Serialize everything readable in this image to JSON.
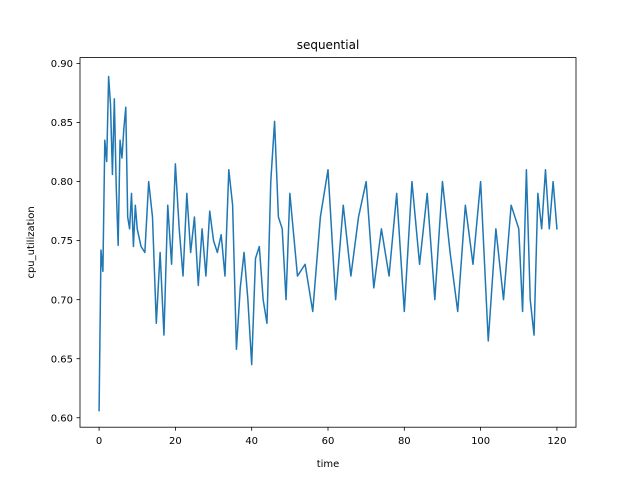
{
  "chart_data": {
    "type": "line",
    "title": "sequential",
    "xlabel": "time",
    "ylabel": "cpu_utilization",
    "xlim": [
      -5,
      125
    ],
    "ylim": [
      0.592,
      0.905
    ],
    "xticks": [
      0,
      20,
      40,
      60,
      80,
      100,
      120
    ],
    "yticks": [
      0.6,
      0.65,
      0.7,
      0.75,
      0.8,
      0.85,
      0.9
    ],
    "ytick_labels": [
      "0.60",
      "0.65",
      "0.70",
      "0.75",
      "0.80",
      "0.85",
      "0.90"
    ],
    "grid": false,
    "legend": "none",
    "color": "#1f77b4",
    "series": [
      {
        "x": [
          0,
          0.5,
          1,
          1.5,
          2,
          2.5,
          3,
          3.5,
          4,
          4.5,
          5,
          5.5,
          6,
          6.5,
          7,
          7.5,
          8,
          8.5,
          9,
          9.5,
          10,
          11,
          12,
          13,
          14,
          15,
          16,
          17,
          18,
          19,
          20,
          21,
          22,
          23,
          24,
          25,
          26,
          27,
          28,
          29,
          30,
          31,
          32,
          33,
          34,
          35,
          36,
          37,
          38,
          39,
          40,
          41,
          42,
          43,
          44,
          45,
          46,
          47,
          48,
          49,
          50,
          52,
          54,
          56,
          58,
          60,
          62,
          64,
          66,
          68,
          70,
          72,
          74,
          76,
          78,
          80,
          82,
          84,
          86,
          88,
          90,
          92,
          94,
          96,
          98,
          100,
          102,
          104,
          106,
          108,
          110,
          111,
          112,
          113,
          114,
          115,
          116,
          117,
          118,
          119,
          120
        ],
        "y": [
          0.606,
          0.742,
          0.724,
          0.835,
          0.817,
          0.889,
          0.865,
          0.806,
          0.87,
          0.795,
          0.746,
          0.835,
          0.82,
          0.845,
          0.863,
          0.77,
          0.76,
          0.79,
          0.745,
          0.78,
          0.76,
          0.745,
          0.74,
          0.8,
          0.77,
          0.68,
          0.74,
          0.67,
          0.78,
          0.73,
          0.815,
          0.76,
          0.72,
          0.79,
          0.74,
          0.77,
          0.712,
          0.76,
          0.72,
          0.775,
          0.75,
          0.74,
          0.755,
          0.72,
          0.81,
          0.78,
          0.658,
          0.71,
          0.74,
          0.7,
          0.645,
          0.735,
          0.745,
          0.7,
          0.68,
          0.8,
          0.851,
          0.77,
          0.76,
          0.7,
          0.79,
          0.72,
          0.73,
          0.69,
          0.77,
          0.81,
          0.7,
          0.78,
          0.72,
          0.77,
          0.8,
          0.71,
          0.76,
          0.72,
          0.79,
          0.69,
          0.8,
          0.73,
          0.79,
          0.7,
          0.8,
          0.74,
          0.69,
          0.78,
          0.73,
          0.8,
          0.665,
          0.76,
          0.7,
          0.78,
          0.76,
          0.69,
          0.81,
          0.7,
          0.67,
          0.79,
          0.76,
          0.81,
          0.76,
          0.8,
          0.76
        ]
      }
    ]
  }
}
